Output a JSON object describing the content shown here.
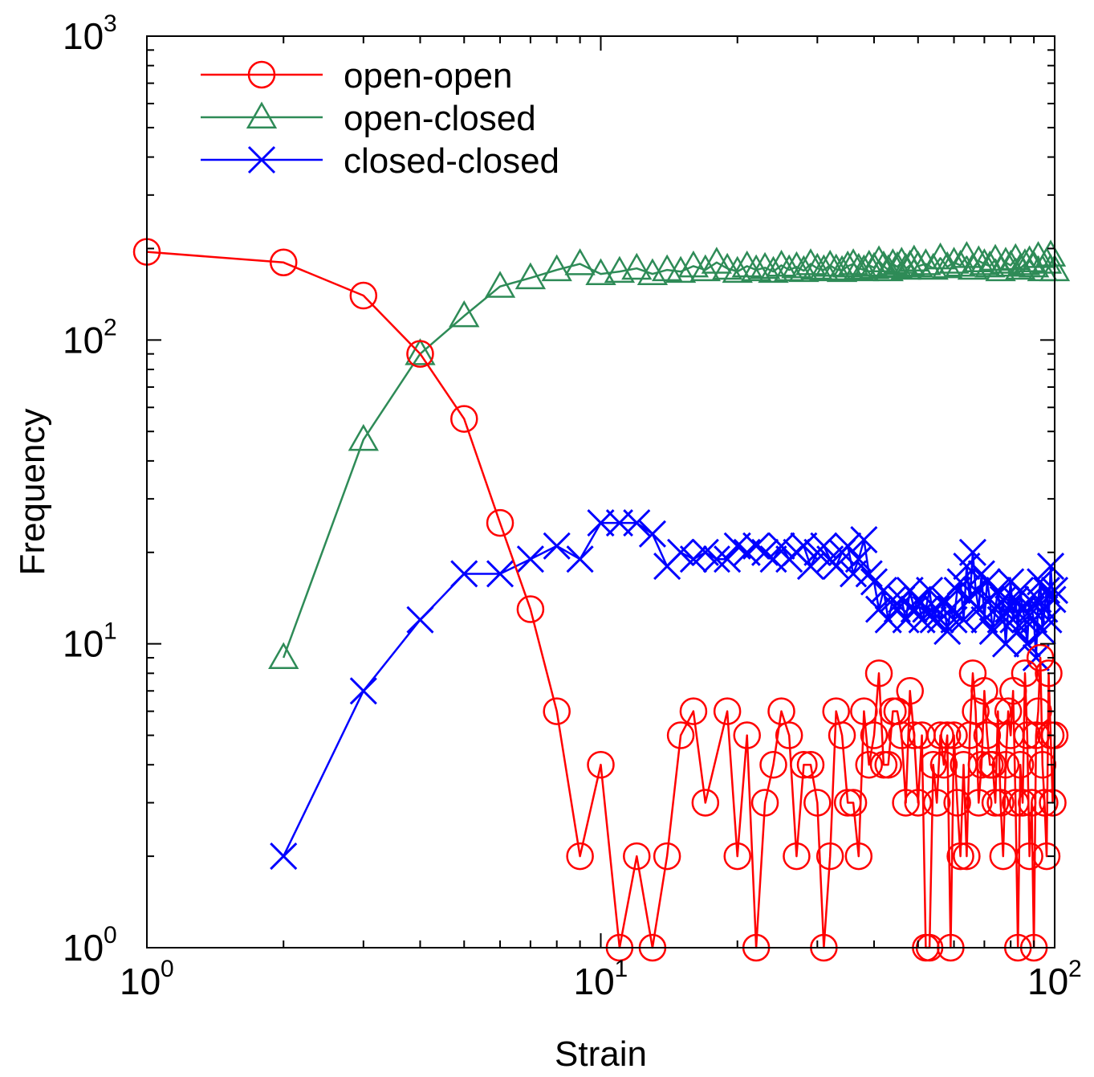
{
  "chart_data": {
    "type": "line",
    "title": "",
    "xlabel": "Strain",
    "ylabel": "Frequency",
    "xscale": "log",
    "yscale": "log",
    "xlim": [
      1,
      100
    ],
    "ylim": [
      1,
      1000
    ],
    "grid": false,
    "legend_position": "top-left",
    "x_ticks": [
      {
        "base": "10",
        "exp": "0"
      },
      {
        "base": "10",
        "exp": "1"
      },
      {
        "base": "10",
        "exp": "2"
      }
    ],
    "y_ticks": [
      {
        "base": "10",
        "exp": "0"
      },
      {
        "base": "10",
        "exp": "1"
      },
      {
        "base": "10",
        "exp": "2"
      },
      {
        "base": "10",
        "exp": "3"
      }
    ],
    "series": [
      {
        "name": "open-open",
        "color": "#ff0000",
        "marker": "circle",
        "x": [
          1,
          2,
          3,
          4,
          5,
          6,
          7,
          8,
          9,
          10,
          11,
          12,
          13,
          14,
          15,
          16,
          17,
          19,
          20,
          21,
          22,
          23,
          24,
          25,
          26,
          27,
          28,
          29,
          30,
          31,
          32,
          33,
          34,
          35,
          36,
          37,
          38,
          39,
          40,
          41,
          42,
          43,
          44,
          45,
          46,
          47,
          48,
          49,
          50,
          51,
          52,
          53,
          54,
          55,
          56,
          57,
          58,
          59,
          60,
          61,
          62,
          63,
          64,
          65,
          66,
          67,
          68,
          69,
          70,
          71,
          72,
          73,
          74,
          75,
          76,
          77,
          78,
          79,
          80,
          81,
          82,
          83,
          84,
          85,
          86,
          87,
          88,
          89,
          90,
          91,
          92,
          93,
          94,
          95,
          96,
          97,
          98,
          99,
          100
        ],
        "y": [
          195,
          180,
          140,
          90,
          55,
          25,
          13,
          6,
          2,
          4,
          1,
          2,
          1,
          2,
          5,
          6,
          3,
          6,
          2,
          5,
          1,
          3,
          4,
          6,
          5,
          2,
          4,
          4,
          3,
          1,
          2,
          6,
          5,
          3,
          3,
          2,
          6,
          4,
          5,
          8,
          4,
          4,
          6,
          6,
          5,
          3,
          7,
          5,
          3,
          5,
          1,
          1,
          4,
          3,
          5,
          4,
          5,
          1,
          5,
          3,
          2,
          4,
          2,
          5,
          8,
          6,
          3,
          4,
          7,
          5,
          4,
          4,
          3,
          6,
          3,
          2,
          4,
          6,
          5,
          7,
          3,
          1,
          4,
          3,
          8,
          5,
          2,
          3,
          1,
          5,
          6,
          9,
          4,
          3,
          2,
          8,
          5,
          3,
          5
        ]
      },
      {
        "name": "open-closed",
        "color": "#2e8b57",
        "marker": "triangle",
        "x": [
          2,
          3,
          4,
          5,
          6,
          7,
          8,
          9,
          10,
          11,
          12,
          13,
          14,
          15,
          16,
          17,
          18,
          19,
          20,
          21,
          22,
          23,
          24,
          25,
          26,
          27,
          28,
          29,
          30,
          31,
          32,
          33,
          34,
          35,
          36,
          37,
          38,
          39,
          40,
          41,
          42,
          43,
          44,
          45,
          46,
          47,
          48,
          49,
          50,
          52,
          54,
          56,
          58,
          60,
          62,
          64,
          66,
          68,
          70,
          72,
          74,
          76,
          78,
          80,
          82,
          84,
          86,
          88,
          90,
          92,
          94,
          96,
          98,
          100
        ],
        "y": [
          9,
          47,
          90,
          120,
          150,
          160,
          170,
          178,
          165,
          168,
          172,
          165,
          170,
          168,
          175,
          170,
          180,
          172,
          168,
          175,
          170,
          173,
          168,
          176,
          170,
          174,
          169,
          178,
          172,
          170,
          176,
          171,
          169,
          175,
          178,
          172,
          170,
          176,
          173,
          182,
          175,
          170,
          178,
          174,
          180,
          172,
          176,
          183,
          175,
          178,
          172,
          186,
          174,
          180,
          176,
          188,
          172,
          182,
          178,
          175,
          184,
          170,
          180,
          176,
          185,
          172,
          178,
          182,
          175,
          188,
          170,
          180,
          190,
          170
        ]
      },
      {
        "name": "closed-closed",
        "color": "#0000ff",
        "marker": "x",
        "x": [
          2,
          3,
          4,
          5,
          6,
          7,
          8,
          9,
          10,
          11,
          12,
          13,
          14,
          15,
          16,
          17,
          18,
          19,
          20,
          21,
          22,
          23,
          24,
          25,
          26,
          27,
          28,
          29,
          30,
          31,
          32,
          33,
          34,
          35,
          36,
          37,
          38,
          39,
          40,
          41,
          42,
          43,
          44,
          45,
          46,
          47,
          48,
          49,
          50,
          51,
          52,
          53,
          54,
          55,
          56,
          57,
          58,
          59,
          60,
          61,
          62,
          63,
          64,
          65,
          66,
          67,
          68,
          69,
          70,
          71,
          72,
          73,
          74,
          75,
          76,
          77,
          78,
          79,
          80,
          81,
          82,
          83,
          84,
          85,
          86,
          87,
          88,
          89,
          90,
          91,
          92,
          93,
          94,
          95,
          96,
          97,
          98,
          99,
          100
        ],
        "y": [
          2,
          7,
          12,
          17,
          17,
          19,
          21,
          19,
          25,
          25,
          25,
          23,
          18,
          20,
          19,
          20,
          19,
          19,
          21,
          20,
          21,
          20,
          19,
          21,
          19,
          20,
          21,
          18,
          20,
          21,
          19,
          18,
          20,
          21,
          17,
          19,
          22,
          17,
          16,
          13,
          15,
          12,
          14,
          13,
          14,
          12,
          15,
          13,
          14,
          12,
          13,
          15,
          12,
          13,
          12,
          14,
          11,
          13,
          12,
          15,
          16,
          12,
          18,
          14,
          20,
          15,
          13,
          17,
          12,
          16,
          14,
          11,
          13,
          15,
          12,
          14,
          10,
          13,
          16,
          12,
          14,
          11,
          15,
          13,
          12,
          10,
          14,
          13,
          12,
          9,
          14,
          16,
          11,
          13,
          15,
          12,
          18,
          14,
          15
        ]
      }
    ]
  }
}
